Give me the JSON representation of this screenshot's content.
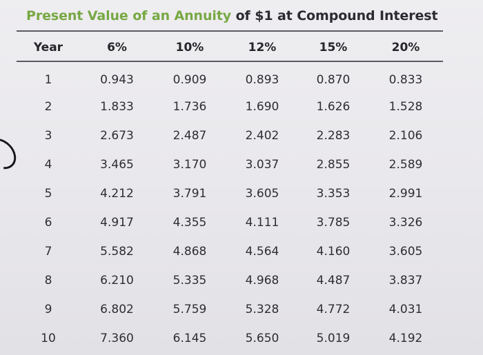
{
  "title": {
    "part1": "Present Value of an Annuity",
    "part2": " of $1 at Compound Interest"
  },
  "table": {
    "headers": [
      "Year",
      "6%",
      "10%",
      "12%",
      "15%",
      "20%"
    ],
    "rows": [
      [
        "1",
        "0.943",
        "0.909",
        "0.893",
        "0.870",
        "0.833"
      ],
      [
        "2",
        "1.833",
        "1.736",
        "1.690",
        "1.626",
        "1.528"
      ],
      [
        "3",
        "2.673",
        "2.487",
        "2.402",
        "2.283",
        "2.106"
      ],
      [
        "4",
        "3.465",
        "3.170",
        "3.037",
        "2.855",
        "2.589"
      ],
      [
        "5",
        "4.212",
        "3.791",
        "3.605",
        "3.353",
        "2.991"
      ],
      [
        "6",
        "4.917",
        "4.355",
        "4.111",
        "3.785",
        "3.326"
      ],
      [
        "7",
        "5.582",
        "4.868",
        "4.564",
        "4.160",
        "3.605"
      ],
      [
        "8",
        "6.210",
        "5.335",
        "4.968",
        "4.487",
        "3.837"
      ],
      [
        "9",
        "6.802",
        "5.759",
        "5.328",
        "4.772",
        "4.031"
      ],
      [
        "10",
        "7.360",
        "6.145",
        "5.650",
        "5.019",
        "4.192"
      ]
    ]
  },
  "colors": {
    "title_accent": "#77a843",
    "text": "#2b2b31",
    "background": "#eceaee"
  }
}
